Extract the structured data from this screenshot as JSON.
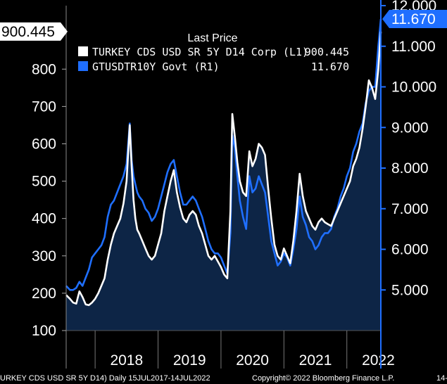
{
  "chart_data": {
    "type": "line",
    "legend": {
      "title": "Last Price",
      "placement": "top-center",
      "entries": [
        {
          "label": "TURKEY CDS USD SR 5Y D14 Corp  (L1)",
          "value": "900.445",
          "color": "#ffffff"
        },
        {
          "label": "GTUSDTR10Y Govt  (R1)",
          "value": "11.670",
          "color": "#1f6fff"
        }
      ]
    },
    "left_axis": {
      "ylim": [
        100,
        970
      ],
      "ticks": [
        "100",
        "200",
        "300",
        "400",
        "500",
        "600",
        "700",
        "800"
      ],
      "last_value_label": "900.445"
    },
    "right_axis": {
      "ylim": [
        4.0,
        12.0
      ],
      "ticks": [
        "5.000",
        "6.000",
        "7.000",
        "8.000",
        "9.000",
        "10.000",
        "11.000",
        "12.000"
      ],
      "last_value_label": "11.670"
    },
    "x_axis": {
      "tick_labels": [
        "2018",
        "2019",
        "2020",
        "2021",
        "2022"
      ],
      "xlim": [
        2017.54,
        2022.54
      ]
    },
    "series": [
      {
        "name": "TURKEY CDS USD SR 5Y D14 Corp",
        "axis": "left",
        "color": "#ffffff",
        "x": [
          2017.54,
          2017.6,
          2017.65,
          2017.7,
          2017.75,
          2017.8,
          2017.85,
          2017.9,
          2017.95,
          2018.0,
          2018.05,
          2018.1,
          2018.15,
          2018.2,
          2018.25,
          2018.3,
          2018.35,
          2018.4,
          2018.45,
          2018.5,
          2018.55,
          2018.58,
          2018.61,
          2018.64,
          2018.67,
          2018.7,
          2018.75,
          2018.8,
          2018.85,
          2018.9,
          2018.95,
          2019.0,
          2019.05,
          2019.1,
          2019.15,
          2019.2,
          2019.25,
          2019.3,
          2019.35,
          2019.4,
          2019.45,
          2019.5,
          2019.55,
          2019.6,
          2019.65,
          2019.7,
          2019.75,
          2019.8,
          2019.85,
          2019.9,
          2019.95,
          2020.0,
          2020.05,
          2020.1,
          2020.15,
          2020.18,
          2020.22,
          2020.26,
          2020.3,
          2020.35,
          2020.4,
          2020.45,
          2020.5,
          2020.55,
          2020.6,
          2020.65,
          2020.7,
          2020.75,
          2020.8,
          2020.85,
          2020.9,
          2020.95,
          2021.0,
          2021.05,
          2021.1,
          2021.15,
          2021.2,
          2021.25,
          2021.3,
          2021.35,
          2021.4,
          2021.45,
          2021.5,
          2021.55,
          2021.6,
          2021.65,
          2021.7,
          2021.75,
          2021.8,
          2021.85,
          2021.9,
          2021.95,
          2022.0,
          2022.05,
          2022.1,
          2022.15,
          2022.2,
          2022.25,
          2022.3,
          2022.35,
          2022.4,
          2022.45,
          2022.5,
          2022.54
        ],
        "y": [
          195,
          185,
          175,
          172,
          205,
          190,
          170,
          168,
          175,
          185,
          200,
          220,
          240,
          290,
          330,
          360,
          380,
          400,
          440,
          500,
          650,
          540,
          450,
          400,
          370,
          360,
          340,
          320,
          300,
          290,
          300,
          330,
          360,
          420,
          460,
          500,
          530,
          470,
          430,
          400,
          390,
          410,
          420,
          410,
          380,
          360,
          330,
          300,
          290,
          300,
          285,
          270,
          250,
          240,
          420,
          680,
          620,
          550,
          500,
          470,
          460,
          580,
          540,
          560,
          600,
          590,
          570,
          480,
          400,
          330,
          300,
          290,
          320,
          300,
          280,
          340,
          420,
          520,
          460,
          420,
          400,
          380,
          370,
          390,
          400,
          390,
          385,
          380,
          400,
          420,
          440,
          460,
          480,
          500,
          540,
          560,
          590,
          640,
          700,
          770,
          750,
          720,
          800,
          900.445
        ]
      },
      {
        "name": "GTUSDTR10Y Govt",
        "axis": "right",
        "color": "#1f6fff",
        "x": [
          2017.54,
          2017.6,
          2017.65,
          2017.7,
          2017.75,
          2017.8,
          2017.85,
          2017.9,
          2017.95,
          2018.0,
          2018.05,
          2018.1,
          2018.15,
          2018.2,
          2018.25,
          2018.3,
          2018.35,
          2018.4,
          2018.45,
          2018.5,
          2018.55,
          2018.58,
          2018.61,
          2018.64,
          2018.67,
          2018.7,
          2018.75,
          2018.8,
          2018.85,
          2018.9,
          2018.95,
          2019.0,
          2019.05,
          2019.1,
          2019.15,
          2019.2,
          2019.25,
          2019.3,
          2019.35,
          2019.4,
          2019.45,
          2019.5,
          2019.55,
          2019.6,
          2019.65,
          2019.7,
          2019.75,
          2019.8,
          2019.85,
          2019.9,
          2019.95,
          2020.0,
          2020.05,
          2020.1,
          2020.15,
          2020.18,
          2020.22,
          2020.26,
          2020.3,
          2020.35,
          2020.4,
          2020.45,
          2020.5,
          2020.55,
          2020.6,
          2020.65,
          2020.7,
          2020.75,
          2020.8,
          2020.85,
          2020.9,
          2020.95,
          2021.0,
          2021.05,
          2021.1,
          2021.15,
          2021.2,
          2021.25,
          2021.3,
          2021.35,
          2021.4,
          2021.45,
          2021.5,
          2021.55,
          2021.6,
          2021.65,
          2021.7,
          2021.75,
          2021.8,
          2021.85,
          2021.9,
          2021.95,
          2022.0,
          2022.05,
          2022.1,
          2022.15,
          2022.2,
          2022.25,
          2022.3,
          2022.35,
          2022.4,
          2022.45,
          2022.5,
          2022.54
        ],
        "y": [
          5.1,
          5.0,
          5.0,
          5.05,
          5.2,
          5.1,
          5.3,
          5.5,
          5.8,
          5.9,
          6.0,
          6.1,
          6.3,
          6.8,
          7.1,
          7.2,
          7.4,
          7.6,
          7.8,
          8.1,
          9.1,
          8.2,
          7.8,
          7.6,
          7.4,
          7.3,
          7.2,
          7.0,
          6.9,
          6.7,
          6.8,
          7.0,
          7.3,
          7.6,
          7.9,
          8.1,
          8.2,
          7.8,
          7.4,
          7.1,
          7.1,
          7.2,
          7.3,
          7.2,
          7.0,
          6.8,
          6.5,
          6.2,
          6.0,
          5.9,
          5.9,
          5.8,
          5.6,
          5.4,
          6.4,
          8.8,
          8.5,
          7.8,
          7.2,
          6.8,
          6.5,
          7.8,
          7.4,
          7.5,
          7.8,
          7.6,
          7.4,
          6.8,
          6.2,
          5.9,
          5.6,
          5.7,
          5.9,
          5.8,
          5.6,
          6.0,
          6.5,
          7.3,
          6.8,
          6.6,
          6.3,
          6.2,
          6.0,
          6.1,
          6.3,
          6.4,
          6.4,
          6.5,
          6.8,
          7.0,
          7.3,
          7.5,
          7.8,
          8.0,
          8.4,
          8.6,
          8.9,
          9.1,
          9.6,
          9.9,
          10.0,
          10.0,
          11.0,
          11.67
        ]
      }
    ]
  },
  "footer": {
    "left": "URKEY CDS USD SR 5Y D14)  Daily 15JUL2017-14JUL2022",
    "center": "Copyright© 2022 Bloomberg Finance L.P.",
    "right": "14-"
  }
}
